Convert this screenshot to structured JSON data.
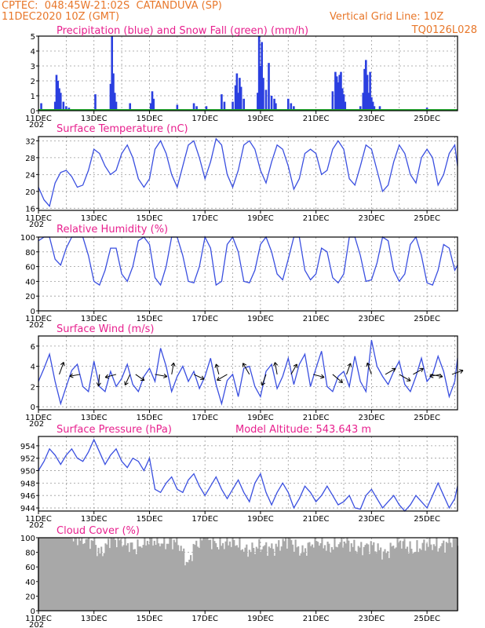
{
  "header": {
    "line1": "CPTEC:  048:45W-21:02S  CATANDUVA (SP)",
    "line2": "11DEC2020 10Z (GMT)",
    "grid_note": "Vertical Grid Line: 10Z",
    "model_id": "TQ0126L028"
  },
  "colors": {
    "precip": "#2a3fe0",
    "snow": "#1fa82a",
    "line": "#3a4fe0",
    "title": "#e8208e",
    "header": "#e8772a",
    "cloud": "#a8a8a8",
    "wind_arrow": "#000000",
    "grid": "#9a9a9a"
  },
  "x_axis": {
    "tick_labels": [
      "11DEC",
      "13DEC",
      "15DEC",
      "17DEC",
      "19DEC",
      "21DEC",
      "23DEC",
      "25DEC"
    ],
    "tick_days": [
      0,
      2,
      4,
      6,
      8,
      10,
      12,
      14
    ],
    "year_stub": "202",
    "range_days": [
      0,
      15.1
    ]
  },
  "chart_data": [
    {
      "type": "bar",
      "title": "Precipitation (blue) and Snow Fall (green) (mm/h)",
      "ylim": [
        0,
        5
      ],
      "yticks": [
        0,
        1,
        2,
        3,
        4,
        5
      ],
      "grid": true,
      "series": [
        {
          "name": "Precipitation",
          "x": [
            0.1,
            0.6,
            0.65,
            0.7,
            0.75,
            0.8,
            0.9,
            1.0,
            1.1,
            2.05,
            2.6,
            2.65,
            2.7,
            2.75,
            2.8,
            3.3,
            4.05,
            4.1,
            4.15,
            5.0,
            5.6,
            5.7,
            6.05,
            6.6,
            6.7,
            7.0,
            7.1,
            7.15,
            7.2,
            7.25,
            7.3,
            7.4,
            7.9,
            7.95,
            8.0,
            8.05,
            8.1,
            8.2,
            8.3,
            8.4,
            8.5,
            8.55,
            9.0,
            9.1,
            9.2,
            10.6,
            10.7,
            10.75,
            10.8,
            10.85,
            10.9,
            10.95,
            11.0,
            11.05,
            11.6,
            11.7,
            11.75,
            11.8,
            11.85,
            11.9,
            11.95,
            12.0,
            12.05,
            12.1,
            12.3,
            14.0
          ],
          "values": [
            0.5,
            0.6,
            2.4,
            2.0,
            1.5,
            1.2,
            0.6,
            0.3,
            0.2,
            1.1,
            1.8,
            5.0,
            2.5,
            1.2,
            0.6,
            0.5,
            0.5,
            1.3,
            0.8,
            0.4,
            0.5,
            0.3,
            0.3,
            1.1,
            0.6,
            0.6,
            1.7,
            2.5,
            1.2,
            2.2,
            1.6,
            0.8,
            1.2,
            5.0,
            3.0,
            4.6,
            2.2,
            1.4,
            3.2,
            1.0,
            0.8,
            0.5,
            0.8,
            0.5,
            0.3,
            1.3,
            2.6,
            2.3,
            1.9,
            2.4,
            2.6,
            1.5,
            1.1,
            0.6,
            0.3,
            1.2,
            2.8,
            3.4,
            2.4,
            1.2,
            2.6,
            0.9,
            0.6,
            0.3,
            0.3,
            0.2
          ]
        },
        {
          "name": "Snow Fall",
          "x": [
            0,
            15.1
          ],
          "values": [
            0,
            0
          ]
        }
      ]
    },
    {
      "type": "line",
      "title": "Surface Temperature (nC)",
      "ylim": [
        15.5,
        33
      ],
      "yticks": [
        16,
        20,
        24,
        28,
        32
      ],
      "grid": true,
      "series": [
        {
          "name": "",
          "x": [
            0,
            0.2,
            0.4,
            0.6,
            0.8,
            1.0,
            1.2,
            1.4,
            1.6,
            1.8,
            2.0,
            2.2,
            2.4,
            2.6,
            2.8,
            3.0,
            3.2,
            3.4,
            3.6,
            3.8,
            4.0,
            4.2,
            4.4,
            4.6,
            4.8,
            5.0,
            5.2,
            5.4,
            5.6,
            5.8,
            6.0,
            6.2,
            6.4,
            6.6,
            6.8,
            7.0,
            7.2,
            7.4,
            7.6,
            7.8,
            8.0,
            8.2,
            8.4,
            8.6,
            8.8,
            9.0,
            9.2,
            9.4,
            9.6,
            9.8,
            10.0,
            10.2,
            10.4,
            10.6,
            10.8,
            11.0,
            11.2,
            11.4,
            11.6,
            11.8,
            12.0,
            12.2,
            12.4,
            12.6,
            12.8,
            13.0,
            13.2,
            13.4,
            13.6,
            13.8,
            14.0,
            14.2,
            14.4,
            14.6,
            14.8,
            15.0,
            15.1
          ],
          "values": [
            21,
            18,
            16.5,
            22,
            24.5,
            25,
            23.5,
            21,
            21.5,
            25,
            30,
            29,
            26,
            24,
            25,
            29,
            31,
            28,
            23,
            21,
            23,
            30,
            32,
            29,
            24,
            21,
            26,
            31,
            32,
            28,
            23,
            27,
            32.5,
            31,
            24,
            21,
            25,
            31,
            32,
            30,
            25,
            22,
            27,
            31,
            30,
            26,
            20.5,
            23,
            29,
            30,
            29,
            24,
            25,
            30,
            32,
            30,
            23,
            21.5,
            26,
            31,
            30,
            25,
            20,
            21.5,
            27,
            31,
            29,
            24,
            22,
            28,
            30,
            28,
            21.5,
            24,
            29,
            31,
            26
          ]
        }
      ]
    },
    {
      "type": "line",
      "title": "Relative Humidity (%)",
      "ylim": [
        0,
        100
      ],
      "yticks": [
        0,
        20,
        40,
        60,
        80,
        100
      ],
      "grid": true,
      "series": [
        {
          "name": "",
          "x": [
            0,
            0.2,
            0.4,
            0.6,
            0.8,
            1.0,
            1.2,
            1.4,
            1.6,
            1.8,
            2.0,
            2.2,
            2.4,
            2.6,
            2.8,
            3.0,
            3.2,
            3.4,
            3.6,
            3.8,
            4.0,
            4.2,
            4.4,
            4.6,
            4.8,
            5.0,
            5.2,
            5.4,
            5.6,
            5.8,
            6.0,
            6.2,
            6.4,
            6.6,
            6.8,
            7.0,
            7.2,
            7.4,
            7.6,
            7.8,
            8.0,
            8.2,
            8.4,
            8.6,
            8.8,
            9.0,
            9.2,
            9.4,
            9.6,
            9.8,
            10.0,
            10.2,
            10.4,
            10.6,
            10.8,
            11.0,
            11.2,
            11.4,
            11.6,
            11.8,
            12.0,
            12.2,
            12.4,
            12.6,
            12.8,
            13.0,
            13.2,
            13.4,
            13.6,
            13.8,
            14.0,
            14.2,
            14.4,
            14.6,
            14.8,
            15.0,
            15.1
          ],
          "values": [
            95,
            100,
            100,
            70,
            62,
            85,
            100,
            100,
            100,
            75,
            40,
            35,
            55,
            85,
            85,
            50,
            40,
            60,
            95,
            100,
            90,
            45,
            35,
            60,
            100,
            100,
            75,
            40,
            38,
            60,
            100,
            85,
            35,
            40,
            90,
            100,
            80,
            40,
            38,
            55,
            90,
            100,
            80,
            50,
            42,
            70,
            100,
            100,
            55,
            42,
            50,
            85,
            80,
            45,
            38,
            50,
            100,
            100,
            75,
            40,
            42,
            65,
            100,
            95,
            55,
            40,
            50,
            90,
            100,
            75,
            38,
            35,
            55,
            90,
            85,
            55,
            62
          ]
        }
      ]
    },
    {
      "type": "line",
      "title": "Surface Wind (m/s)",
      "ylim": [
        -0.3,
        7
      ],
      "yticks": [
        0,
        2,
        4,
        6
      ],
      "grid": true,
      "series": [
        {
          "name": "",
          "x": [
            0,
            0.2,
            0.4,
            0.6,
            0.8,
            1.0,
            1.2,
            1.4,
            1.6,
            1.8,
            2.0,
            2.2,
            2.4,
            2.6,
            2.8,
            3.0,
            3.2,
            3.4,
            3.6,
            3.8,
            4.0,
            4.2,
            4.4,
            4.6,
            4.8,
            5.0,
            5.2,
            5.4,
            5.6,
            5.8,
            6.0,
            6.2,
            6.4,
            6.6,
            6.8,
            7.0,
            7.2,
            7.4,
            7.6,
            7.8,
            8.0,
            8.2,
            8.4,
            8.6,
            8.8,
            9.0,
            9.2,
            9.4,
            9.6,
            9.8,
            10.0,
            10.2,
            10.4,
            10.6,
            10.8,
            11.0,
            11.2,
            11.4,
            11.6,
            11.8,
            12.0,
            12.2,
            12.4,
            12.6,
            12.8,
            13.0,
            13.2,
            13.4,
            13.6,
            13.8,
            14.0,
            14.2,
            14.4,
            14.6,
            14.8,
            15.0,
            15.1
          ],
          "values": [
            2.5,
            3.8,
            5.2,
            2.5,
            0.3,
            2.0,
            3.6,
            4.2,
            2.0,
            1.5,
            4.5,
            2.0,
            1.5,
            3.5,
            2.0,
            2.8,
            4.2,
            2.2,
            1.5,
            3.0,
            3.8,
            2.5,
            5.8,
            4.0,
            1.5,
            3.0,
            4.0,
            2.5,
            3.5,
            1.8,
            3.0,
            4.8,
            2.2,
            0.3,
            2.6,
            3.2,
            1.0,
            3.8,
            4.0,
            2.0,
            1.0,
            3.5,
            4.2,
            1.8,
            3.0,
            4.8,
            2.2,
            4.2,
            5.2,
            2.0,
            3.8,
            5.5,
            2.0,
            1.5,
            3.0,
            3.5,
            2.0,
            5.0,
            2.5,
            1.5,
            6.6,
            4.0,
            3.0,
            2.2,
            3.5,
            4.5,
            2.2,
            1.5,
            3.0,
            4.8,
            2.5,
            3.2,
            5.0,
            3.5,
            1.0,
            2.5,
            4.8
          ]
        }
      ],
      "arrows": {
        "x": [
          0.75,
          1.5,
          2.2,
          2.8,
          3.3,
          3.5,
          4.2,
          4.8,
          5.6,
          6.5,
          6.8,
          7.6,
          8.2,
          8.6,
          9.1,
          9.9,
          10.6,
          11.1,
          12.0,
          12.5,
          13.0,
          13.5,
          14.1,
          14.5,
          14.9
        ],
        "angle_deg": [
          -70,
          170,
          95,
          165,
          115,
          35,
          10,
          -80,
          25,
          -105,
          150,
          -120,
          110,
          -100,
          -60,
          15,
          40,
          -70,
          -110,
          -30,
          30,
          -30,
          10,
          170,
          -20
        ],
        "speed": [
          2.5,
          1.5,
          2.0,
          1.8,
          2.0,
          1.5,
          2.2,
          2.0,
          1.8,
          1.5,
          2.0,
          2.5,
          2.0,
          2.2,
          2.0,
          1.8,
          2.5,
          2.0,
          2.2,
          2.0,
          2.5,
          2.0,
          2.5,
          1.8,
          2.0
        ]
      }
    },
    {
      "type": "line",
      "title": "Surface Pressure (hPa)",
      "subtitle": "Model Altitude: 543.643 m",
      "ylim": [
        943.5,
        955.5
      ],
      "yticks": [
        944,
        946,
        948,
        950,
        952,
        954
      ],
      "grid": true,
      "series": [
        {
          "name": "",
          "x": [
            0,
            0.2,
            0.4,
            0.6,
            0.8,
            1.0,
            1.2,
            1.4,
            1.6,
            1.8,
            2.0,
            2.2,
            2.4,
            2.6,
            2.8,
            3.0,
            3.2,
            3.4,
            3.6,
            3.8,
            4.0,
            4.2,
            4.4,
            4.6,
            4.8,
            5.0,
            5.2,
            5.4,
            5.6,
            5.8,
            6.0,
            6.2,
            6.4,
            6.6,
            6.8,
            7.0,
            7.2,
            7.4,
            7.6,
            7.8,
            8.0,
            8.2,
            8.4,
            8.6,
            8.8,
            9.0,
            9.2,
            9.4,
            9.6,
            9.8,
            10.0,
            10.2,
            10.4,
            10.6,
            10.8,
            11.0,
            11.2,
            11.4,
            11.6,
            11.8,
            12.0,
            12.2,
            12.4,
            12.6,
            12.8,
            13.0,
            13.2,
            13.4,
            13.6,
            13.8,
            14.0,
            14.2,
            14.4,
            14.6,
            14.8,
            15.0,
            15.1
          ],
          "values": [
            950.0,
            951.5,
            953.5,
            952.5,
            951.0,
            952.5,
            953.5,
            952.0,
            951.5,
            953.0,
            955.0,
            953.0,
            951.0,
            952.5,
            953.5,
            951.5,
            950.5,
            952.0,
            951.5,
            950.0,
            952.0,
            947.0,
            946.5,
            948.0,
            949.0,
            947.0,
            946.5,
            948.5,
            949.5,
            947.5,
            946.0,
            947.5,
            949.0,
            947.0,
            945.5,
            947.0,
            948.5,
            946.5,
            945.0,
            948.0,
            949.5,
            946.5,
            944.5,
            946.5,
            948.0,
            946.5,
            944.0,
            945.5,
            947.5,
            946.5,
            945.0,
            946.0,
            947.5,
            946.0,
            944.5,
            945.0,
            946.0,
            944.0,
            943.8,
            946.0,
            947.0,
            945.5,
            944.0,
            945.0,
            946.0,
            944.5,
            943.5,
            944.5,
            946.0,
            945.0,
            944.0,
            946.0,
            948.0,
            946.0,
            944.0,
            945.5,
            947.5
          ]
        }
      ]
    },
    {
      "type": "bar",
      "title": "Cloud Cover (%)",
      "ylim": [
        0,
        100
      ],
      "yticks": [
        0,
        20,
        40,
        60,
        80,
        100
      ],
      "grid": true,
      "series": [
        {
          "name": "",
          "x": [
            0,
            0.5,
            1.0,
            1.5,
            2.0,
            2.2,
            2.4,
            2.6,
            3.0,
            3.5,
            4.0,
            4.5,
            5.0,
            5.2,
            5.4,
            5.6,
            6.0,
            6.5,
            7.0,
            7.5,
            8.0,
            8.5,
            9.0,
            9.5,
            10.0,
            10.5,
            11.0,
            11.5,
            12.0,
            12.5,
            13.0,
            13.5,
            14.0,
            14.5,
            15.0
          ],
          "values": [
            100,
            100,
            100,
            98,
            95,
            78,
            85,
            100,
            95,
            85,
            98,
            92,
            96,
            80,
            62,
            88,
            100,
            90,
            96,
            82,
            88,
            85,
            98,
            80,
            97,
            86,
            96,
            85,
            90,
            78,
            96,
            82,
            92,
            88,
            98
          ]
        }
      ]
    }
  ]
}
